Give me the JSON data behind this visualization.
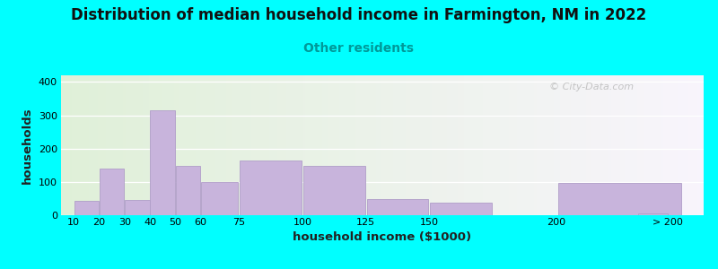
{
  "title": "Distribution of median household income in Farmington, NM in 2022",
  "subtitle": "Other residents",
  "xlabel": "household income ($1000)",
  "ylabel": "households",
  "title_fontsize": 12,
  "subtitle_fontsize": 10,
  "subtitle_color": "#009999",
  "xlabel_fontsize": 9.5,
  "ylabel_fontsize": 9.5,
  "background_outer": "#00FFFF",
  "bar_color": "#c8b4dc",
  "bar_edgecolor": "#b09ec8",
  "ylim": [
    0,
    420
  ],
  "yticks": [
    0,
    100,
    200,
    300,
    400
  ],
  "bar_lefts": [
    10,
    20,
    30,
    40,
    50,
    60,
    75,
    100,
    125,
    150,
    200,
    232
  ],
  "bar_widths": [
    10,
    10,
    10,
    10,
    10,
    15,
    25,
    25,
    25,
    25,
    50,
    12
  ],
  "bar_values": [
    42,
    140,
    47,
    315,
    147,
    100,
    165,
    147,
    48,
    37,
    97,
    5
  ],
  "xtick_positions": [
    10,
    20,
    30,
    40,
    50,
    60,
    75,
    100,
    125,
    150,
    200,
    244
  ],
  "xtick_labels": [
    "10",
    "20",
    "30",
    "40",
    "50",
    "60",
    "75",
    "100",
    "125",
    "150",
    "200",
    "> 200"
  ],
  "xlim": [
    5,
    258
  ],
  "watermark": "© City-Data.com"
}
